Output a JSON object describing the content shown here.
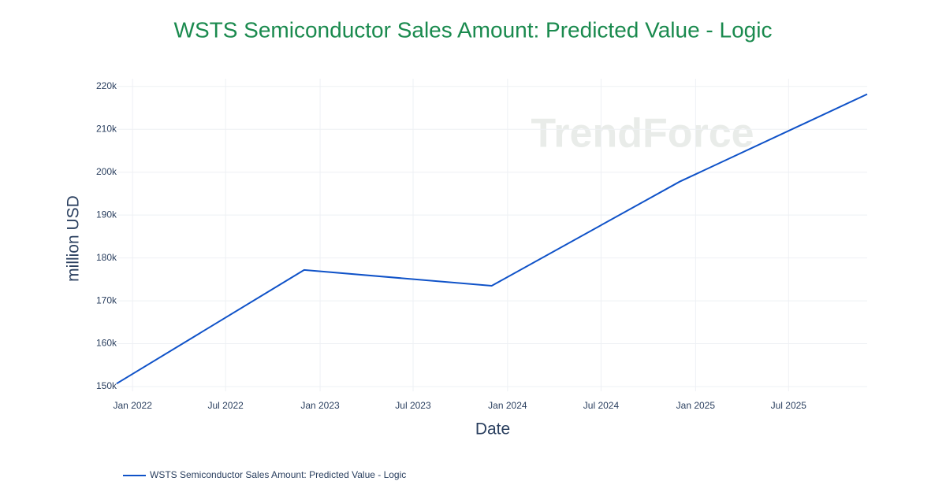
{
  "chart_data": {
    "type": "line",
    "title": "WSTS Semiconductor Sales Amount: Predicted Value - Logic",
    "x_label": "Date",
    "y_label": "million USD",
    "watermark": "TrendForce",
    "x": [
      "2021-12",
      "2022-12",
      "2023-12",
      "2024-12",
      "2025-12"
    ],
    "series": [
      {
        "name": "WSTS Semiconductor Sales Amount: Predicted Value - Logic",
        "color": "#0f52c8",
        "values": [
          150700,
          177200,
          173500,
          197800,
          218200
        ]
      }
    ],
    "xlim": [
      "2021-12",
      "2025-12"
    ],
    "xticks": [
      {
        "value": "2022-01",
        "label": "Jan 2022"
      },
      {
        "value": "2022-07",
        "label": "Jul 2022"
      },
      {
        "value": "2023-01",
        "label": "Jan 2023"
      },
      {
        "value": "2023-07",
        "label": "Jul 2023"
      },
      {
        "value": "2024-01",
        "label": "Jan 2024"
      },
      {
        "value": "2024-07",
        "label": "Jul 2024"
      },
      {
        "value": "2025-01",
        "label": "Jan 2025"
      },
      {
        "value": "2025-07",
        "label": "Jul 2025"
      }
    ],
    "ylim": [
      148900,
      221800
    ],
    "yticks": [
      {
        "value": 150000,
        "label": "150k"
      },
      {
        "value": 160000,
        "label": "160k"
      },
      {
        "value": 170000,
        "label": "170k"
      },
      {
        "value": 180000,
        "label": "180k"
      },
      {
        "value": 190000,
        "label": "190k"
      },
      {
        "value": 200000,
        "label": "200k"
      },
      {
        "value": 210000,
        "label": "210k"
      },
      {
        "value": 220000,
        "label": "220k"
      }
    ],
    "grid": true,
    "legend": "bottom-left"
  }
}
